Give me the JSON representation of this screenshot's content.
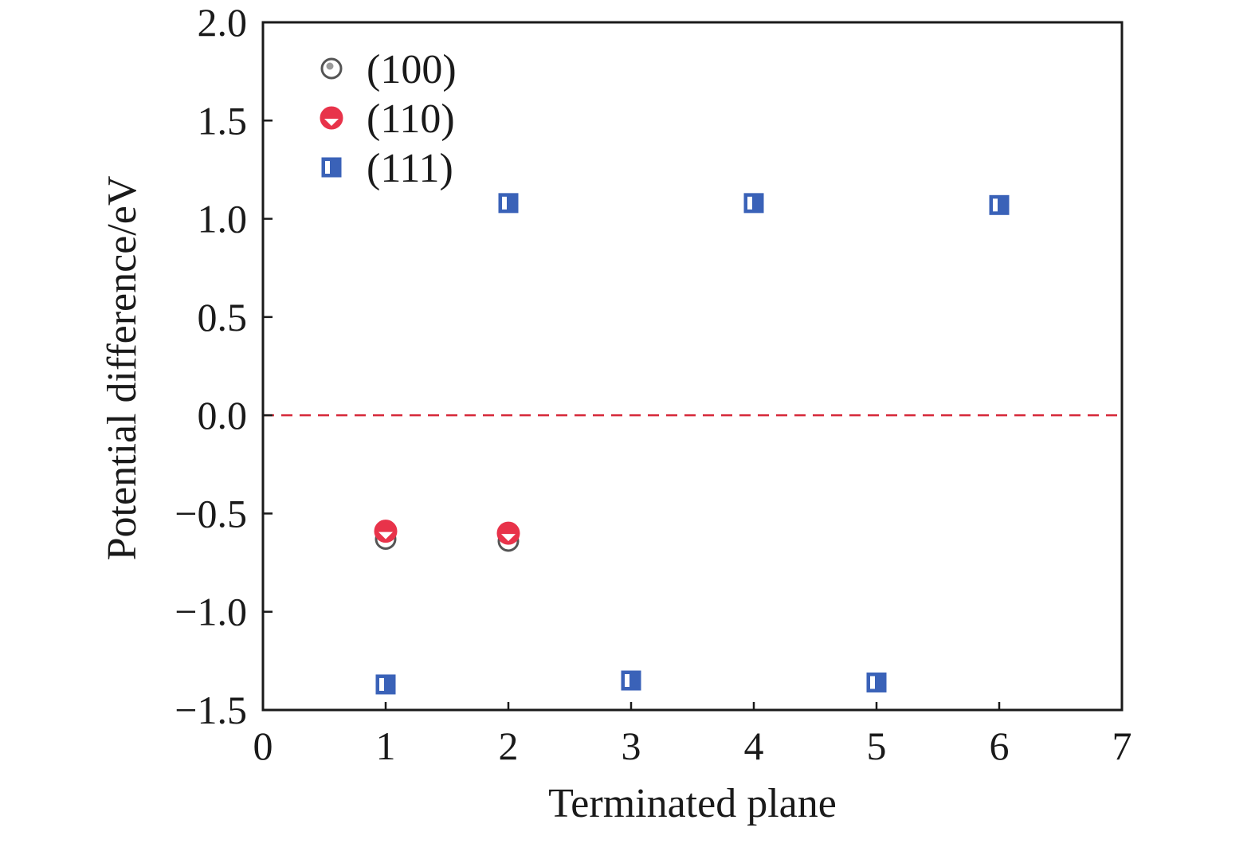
{
  "chart_data": {
    "type": "scatter",
    "xlabel": "Terminated plane",
    "ylabel": "Potential difference/eV",
    "xlim": [
      0,
      7
    ],
    "ylim": [
      -1.5,
      2.0
    ],
    "x_ticks": [
      0,
      1,
      2,
      3,
      4,
      5,
      6,
      7
    ],
    "x_tick_labels": [
      "0",
      "1",
      "2",
      "3",
      "4",
      "5",
      "6",
      "7"
    ],
    "y_ticks": [
      2.0,
      1.5,
      1.0,
      0.5,
      0.0,
      -0.5,
      -1.0,
      -1.5
    ],
    "y_tick_labels": [
      "2.0",
      "1.5",
      "1.0",
      "0.5",
      "0.0",
      "−0.5",
      "−1.0",
      "−1.5"
    ],
    "grid": false,
    "legend_position": "top-left",
    "reference_line": {
      "y": 0.0,
      "style": "dashed",
      "color": "#d62839"
    },
    "series": [
      {
        "name": "(100)",
        "marker": "circle-open",
        "color": "#555555",
        "points": [
          {
            "x": 1,
            "y": -0.63
          },
          {
            "x": 2,
            "y": -0.64
          }
        ]
      },
      {
        "name": "(110)",
        "marker": "circle-half-filled",
        "color": "#e8334a",
        "points": [
          {
            "x": 1,
            "y": -0.59
          },
          {
            "x": 2,
            "y": -0.6
          }
        ]
      },
      {
        "name": "(111)",
        "marker": "square-half-filled",
        "color": "#3a62b8",
        "points": [
          {
            "x": 1,
            "y": -1.37
          },
          {
            "x": 2,
            "y": 1.08
          },
          {
            "x": 3,
            "y": -1.35
          },
          {
            "x": 4,
            "y": 1.08
          },
          {
            "x": 5,
            "y": -1.36
          },
          {
            "x": 6,
            "y": 1.07
          }
        ]
      }
    ]
  }
}
